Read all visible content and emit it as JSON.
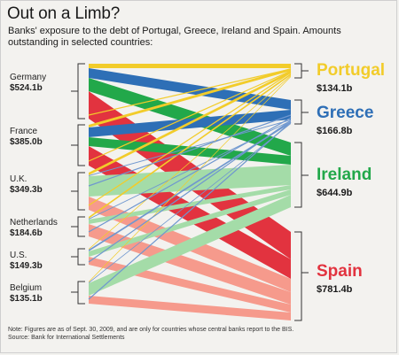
{
  "title": "Out on a Limb?",
  "subtitle": "Banks' exposure to the debt of Portugal, Greece, Ireland and Spain. Amounts outstanding in selected countries:",
  "sources": [
    {
      "name": "Germany",
      "amount": "$524.1b"
    },
    {
      "name": "France",
      "amount": "$385.0b"
    },
    {
      "name": "U.K.",
      "amount": "$349.3b"
    },
    {
      "name": "Netherlands",
      "amount": "$184.6b"
    },
    {
      "name": "U.S.",
      "amount": "$149.3b"
    },
    {
      "name": "Belgium",
      "amount": "$135.1b"
    }
  ],
  "targets": [
    {
      "name": "Portugal",
      "amount": "$134.1b",
      "color": "#f2cc2a"
    },
    {
      "name": "Greece",
      "amount": "$166.8b",
      "color": "#2e6fb6"
    },
    {
      "name": "Ireland",
      "amount": "$644.9b",
      "color": "#22a84a"
    },
    {
      "name": "Spain",
      "amount": "$781.4b",
      "color": "#e2333f"
    }
  ],
  "flow_colors": {
    "portugal": "#f2cc2a",
    "greece": "#2e6fb6",
    "ireland": "#22a84a",
    "spain": "#e2333f",
    "ireland_light": "#a4dca8",
    "spain_light": "#f69a8c"
  },
  "note": "Note: Figures are as of Sept. 30, 2009, and are only for countries whose central banks report to the BIS.",
  "source": "Source: Bank for International Settlements"
}
